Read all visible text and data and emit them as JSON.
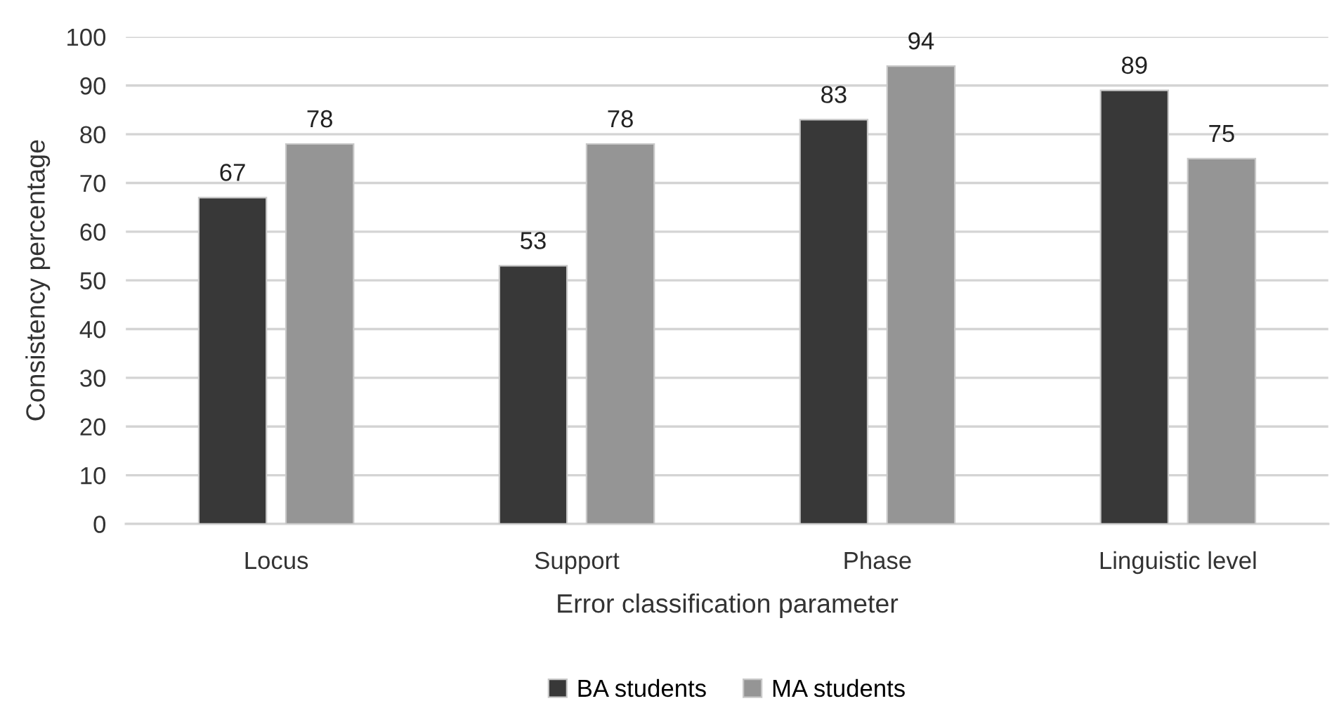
{
  "chart_data": {
    "type": "bar",
    "xlabel": "Error classification parameter",
    "ylabel": "Consistency percentage",
    "categories": [
      "Locus",
      "Support",
      "Phase",
      "Linguistic level"
    ],
    "series": [
      {
        "name": "BA students",
        "color": "#383838",
        "values": [
          67,
          53,
          83,
          89
        ]
      },
      {
        "name": "MA students",
        "color": "#959595",
        "values": [
          78,
          78,
          94,
          75
        ]
      }
    ],
    "ylim": [
      0,
      100
    ],
    "yticks": [
      0,
      10,
      20,
      30,
      40,
      50,
      60,
      70,
      80,
      90,
      100
    ],
    "grid": "y",
    "legend": "bottom",
    "data_labels": true
  }
}
